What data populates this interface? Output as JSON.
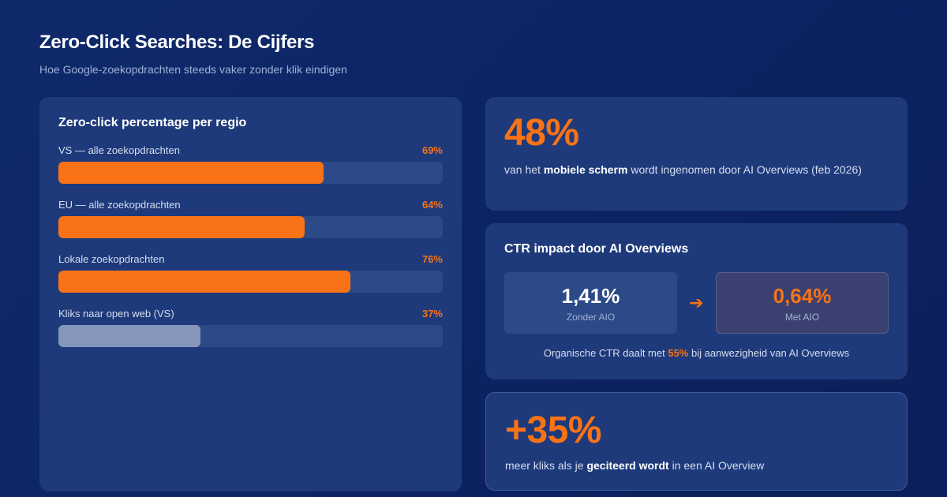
{
  "header": {
    "title": "Zero-Click Searches: De Cijfers",
    "subtitle": "Hoe Google-zoekopdrachten steeds vaker zonder klik eindigen"
  },
  "regions": {
    "title": "Zero-click percentage per regio",
    "items": [
      {
        "label": "VS — alle zoekopdrachten",
        "value_label": "69%",
        "percent": 69,
        "color": "#f97316"
      },
      {
        "label": "EU — alle zoekopdrachten",
        "value_label": "64%",
        "percent": 64,
        "color": "#f97316"
      },
      {
        "label": "Lokale zoekopdrachten",
        "value_label": "76%",
        "percent": 76,
        "color": "#f97316"
      },
      {
        "label": "Kliks naar open web (VS)",
        "value_label": "37%",
        "percent": 37,
        "color": "#8596ba"
      }
    ]
  },
  "stat_mobile": {
    "value": "48%",
    "text_before": "van het ",
    "text_bold": "mobiele scherm",
    "text_after": " wordt ingenomen door AI Overviews (feb 2026)"
  },
  "ctr": {
    "title": "CTR impact door AI Overviews",
    "before_value": "1,41%",
    "before_label": "Zonder AIO",
    "arrow": "➔",
    "after_value": "0,64%",
    "after_label": "Met AIO",
    "note_before": "Organische CTR daalt met ",
    "note_accent": "55%",
    "note_after": " bij aanwezigheid van AI Overviews"
  },
  "stat_cited": {
    "value": "+35%",
    "text_before": "meer kliks als je ",
    "text_bold": "geciteerd wordt",
    "text_after": " in een AI Overview"
  },
  "colors": {
    "accent": "#f97316",
    "card": "#1e3a7a",
    "track": "#2c4a88",
    "background": "#0d2566"
  }
}
